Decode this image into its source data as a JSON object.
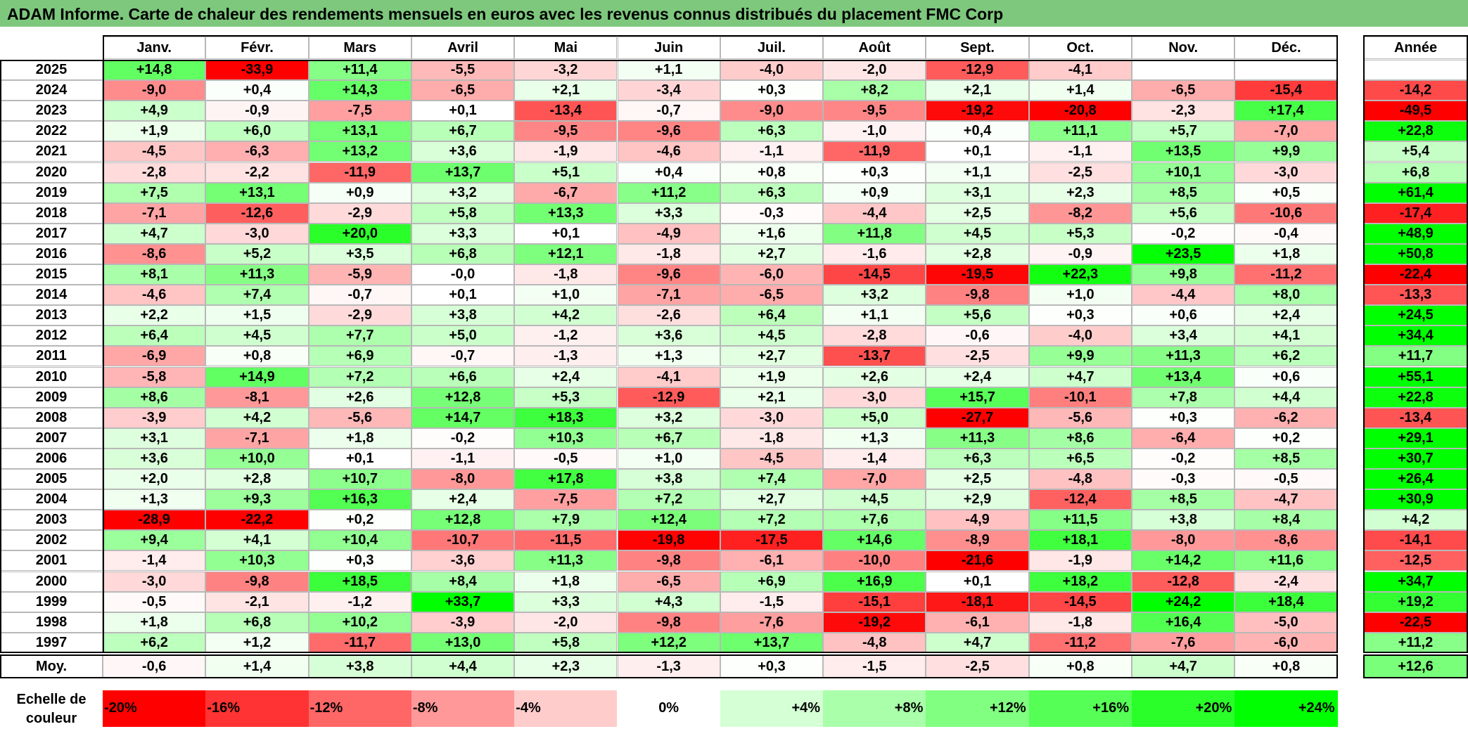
{
  "title": "ADAM Informe. Carte de chaleur des rendements mensuels en euros avec les revenus connus distribués du placement FMC Corp",
  "chart_data": {
    "type": "heatmap",
    "months": [
      "Janv.",
      "Févr.",
      "Mars",
      "Avril",
      "Mai",
      "Juin",
      "Juil.",
      "Août",
      "Sept.",
      "Oct.",
      "Nov.",
      "Déc."
    ],
    "year_header": "Année",
    "rows": [
      {
        "year": "2025",
        "values": [
          "+14,8",
          "-33,9",
          "+11,4",
          "-5,5",
          "-3,2",
          "+1,1",
          "-4,0",
          "-2,0",
          "-12,9",
          "-4,1",
          "",
          ""
        ],
        "annual": ""
      },
      {
        "year": "2024",
        "values": [
          "-9,0",
          "+0,4",
          "+14,3",
          "-6,5",
          "+2,1",
          "-3,4",
          "+0,3",
          "+8,2",
          "+2,1",
          "+1,4",
          "-6,5",
          "-15,4"
        ],
        "annual": "-14,2"
      },
      {
        "year": "2023",
        "values": [
          "+4,9",
          "-0,9",
          "-7,5",
          "+0,1",
          "-13,4",
          "-0,7",
          "-9,0",
          "-9,5",
          "-19,2",
          "-20,8",
          "-2,3",
          "+17,4"
        ],
        "annual": "-49,5"
      },
      {
        "year": "2022",
        "values": [
          "+1,9",
          "+6,0",
          "+13,1",
          "+6,7",
          "-9,5",
          "-9,6",
          "+6,3",
          "-1,0",
          "+0,4",
          "+11,1",
          "+5,7",
          "-7,0"
        ],
        "annual": "+22,8"
      },
      {
        "year": "2021",
        "values": [
          "-4,5",
          "-6,3",
          "+13,2",
          "+3,6",
          "-1,9",
          "-4,6",
          "-1,1",
          "-11,9",
          "+0,1",
          "-1,1",
          "+13,5",
          "+9,9"
        ],
        "annual": "+5,4"
      },
      {
        "year": "2020",
        "values": [
          "-2,8",
          "-2,2",
          "-11,9",
          "+13,7",
          "+5,1",
          "+0,4",
          "+0,8",
          "+0,3",
          "+1,1",
          "-2,5",
          "+10,1",
          "-3,0"
        ],
        "annual": "+6,8"
      },
      {
        "year": "2019",
        "values": [
          "+7,5",
          "+13,1",
          "+0,9",
          "+3,2",
          "-6,7",
          "+11,2",
          "+6,3",
          "+0,9",
          "+3,1",
          "+2,3",
          "+8,5",
          "+0,5"
        ],
        "annual": "+61,4"
      },
      {
        "year": "2018",
        "values": [
          "-7,1",
          "-12,6",
          "-2,9",
          "+5,8",
          "+13,3",
          "+3,3",
          "-0,3",
          "-4,4",
          "+2,5",
          "-8,2",
          "+5,6",
          "-10,6"
        ],
        "annual": "-17,4"
      },
      {
        "year": "2017",
        "values": [
          "+4,7",
          "-3,0",
          "+20,0",
          "+3,3",
          "+0,1",
          "-4,9",
          "+1,6",
          "+11,8",
          "+4,5",
          "+5,3",
          "-0,2",
          "-0,4"
        ],
        "annual": "+48,9"
      },
      {
        "year": "2016",
        "values": [
          "-8,6",
          "+5,2",
          "+3,5",
          "+6,8",
          "+12,1",
          "-1,8",
          "+2,7",
          "-1,6",
          "+2,8",
          "-0,9",
          "+23,5",
          "+1,8"
        ],
        "annual": "+50,8"
      },
      {
        "year": "2015",
        "values": [
          "+8,1",
          "+11,3",
          "-5,9",
          "-0,0",
          "-1,8",
          "-9,6",
          "-6,0",
          "-14,5",
          "-19,5",
          "+22,3",
          "+9,8",
          "-11,2"
        ],
        "annual": "-22,4"
      },
      {
        "year": "2014",
        "values": [
          "-4,6",
          "+7,4",
          "-0,7",
          "+0,1",
          "+1,0",
          "-7,1",
          "-6,5",
          "+3,2",
          "-9,8",
          "+1,0",
          "-4,4",
          "+8,0"
        ],
        "annual": "-13,3"
      },
      {
        "year": "2013",
        "values": [
          "+2,2",
          "+1,5",
          "-2,9",
          "+3,8",
          "+4,2",
          "-2,6",
          "+6,4",
          "+1,1",
          "+5,6",
          "+0,3",
          "+0,6",
          "+2,4"
        ],
        "annual": "+24,5"
      },
      {
        "year": "2012",
        "values": [
          "+6,4",
          "+4,5",
          "+7,7",
          "+5,0",
          "-1,2",
          "+3,6",
          "+4,5",
          "-2,8",
          "-0,6",
          "-4,0",
          "+3,4",
          "+4,1"
        ],
        "annual": "+34,4"
      },
      {
        "year": "2011",
        "values": [
          "-6,9",
          "+0,8",
          "+6,9",
          "-0,7",
          "-1,3",
          "+1,3",
          "+2,7",
          "-13,7",
          "-2,5",
          "+9,9",
          "+11,3",
          "+6,2"
        ],
        "annual": "+11,7"
      },
      {
        "year": "2010",
        "values": [
          "-5,8",
          "+14,9",
          "+7,2",
          "+6,6",
          "+2,4",
          "-4,1",
          "+1,9",
          "+2,6",
          "+2,4",
          "+4,7",
          "+13,4",
          "+0,6"
        ],
        "annual": "+55,1"
      },
      {
        "year": "2009",
        "values": [
          "+8,6",
          "-8,1",
          "+2,6",
          "+12,8",
          "+5,3",
          "-12,9",
          "+2,1",
          "-3,0",
          "+15,7",
          "-10,1",
          "+7,8",
          "+4,4"
        ],
        "annual": "+22,8"
      },
      {
        "year": "2008",
        "values": [
          "-3,9",
          "+4,2",
          "-5,6",
          "+14,7",
          "+18,3",
          "+3,2",
          "-3,0",
          "+5,0",
          "-27,7",
          "-5,6",
          "+0,3",
          "-6,2"
        ],
        "annual": "-13,4"
      },
      {
        "year": "2007",
        "values": [
          "+3,1",
          "-7,1",
          "+1,8",
          "-0,2",
          "+10,3",
          "+6,7",
          "-1,8",
          "+1,3",
          "+11,3",
          "+8,6",
          "-6,4",
          "+0,2"
        ],
        "annual": "+29,1"
      },
      {
        "year": "2006",
        "values": [
          "+3,6",
          "+10,0",
          "+0,1",
          "-1,1",
          "-0,5",
          "+1,0",
          "-4,5",
          "-1,4",
          "+6,3",
          "+6,5",
          "-0,2",
          "+8,5"
        ],
        "annual": "+30,7"
      },
      {
        "year": "2005",
        "values": [
          "+2,0",
          "+2,8",
          "+10,7",
          "-8,0",
          "+17,8",
          "+3,8",
          "+7,4",
          "-7,0",
          "+2,5",
          "-4,8",
          "-0,3",
          "-0,5"
        ],
        "annual": "+26,4"
      },
      {
        "year": "2004",
        "values": [
          "+1,3",
          "+9,3",
          "+16,3",
          "+2,4",
          "-7,5",
          "+7,2",
          "+2,7",
          "+4,5",
          "+2,9",
          "-12,4",
          "+8,5",
          "-4,7"
        ],
        "annual": "+30,9"
      },
      {
        "year": "2003",
        "values": [
          "-28,9",
          "-22,2",
          "+0,2",
          "+12,8",
          "+7,9",
          "+12,4",
          "+7,2",
          "+7,6",
          "-4,9",
          "+11,5",
          "+3,8",
          "+8,4"
        ],
        "annual": "+4,2"
      },
      {
        "year": "2002",
        "values": [
          "+9,4",
          "+4,1",
          "+10,4",
          "-10,7",
          "-11,5",
          "-19,8",
          "-17,5",
          "+14,6",
          "-8,9",
          "+18,1",
          "-8,0",
          "-8,6"
        ],
        "annual": "-14,1"
      },
      {
        "year": "2001",
        "values": [
          "-1,4",
          "+10,3",
          "+0,3",
          "-3,6",
          "+11,3",
          "-9,8",
          "-6,1",
          "-10,0",
          "-21,6",
          "-1,9",
          "+14,2",
          "+11,6"
        ],
        "annual": "-12,5"
      },
      {
        "year": "2000",
        "values": [
          "-3,0",
          "-9,8",
          "+18,5",
          "+8,4",
          "+1,8",
          "-6,5",
          "+6,9",
          "+16,9",
          "+0,1",
          "+18,2",
          "-12,8",
          "-2,4"
        ],
        "annual": "+34,7"
      },
      {
        "year": "1999",
        "values": [
          "-0,5",
          "-2,1",
          "-1,2",
          "+33,7",
          "+3,3",
          "+4,3",
          "-1,5",
          "-15,1",
          "-18,1",
          "-14,5",
          "+24,2",
          "+18,4"
        ],
        "annual": "+19,2"
      },
      {
        "year": "1998",
        "values": [
          "+1,8",
          "+6,8",
          "+10,2",
          "-3,9",
          "-2,0",
          "-9,8",
          "-7,6",
          "-19,2",
          "-6,1",
          "-1,8",
          "+16,4",
          "-5,0"
        ],
        "annual": "-22,5"
      },
      {
        "year": "1997",
        "values": [
          "+6,2",
          "+1,2",
          "-11,7",
          "+13,0",
          "+5,8",
          "+12,2",
          "+13,7",
          "-4,8",
          "+4,7",
          "-11,2",
          "-7,6",
          "-6,0"
        ],
        "annual": "+11,2"
      }
    ],
    "average": {
      "label": "Moy.",
      "values": [
        "-0,6",
        "+1,4",
        "+3,8",
        "+4,4",
        "+2,3",
        "-1,3",
        "+0,3",
        "-1,5",
        "-2,5",
        "+0,8",
        "+4,7",
        "+0,8"
      ],
      "annual": "+12,6"
    },
    "scale": {
      "label_line1": "Echelle de",
      "label_line2": "couleur",
      "steps": [
        "-20%",
        "-16%",
        "-12%",
        "-8%",
        "-4%",
        "0%",
        "+4%",
        "+8%",
        "+12%",
        "+16%",
        "+20%",
        "+24%"
      ]
    },
    "colors": {
      "negative_max": "#ff0000",
      "neutral": "#ffffff",
      "positive_max": "#00ff00",
      "title_bg": "#7dc87d"
    }
  }
}
